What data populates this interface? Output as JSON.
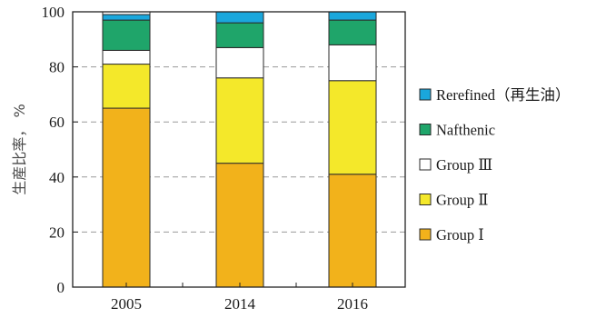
{
  "chart_data": {
    "type": "bar",
    "stacked": true,
    "categories": [
      "2005",
      "2014",
      "2016"
    ],
    "ylabel": "生産比率， %",
    "ylim": [
      0,
      100
    ],
    "yticks": [
      "0",
      "20",
      "40",
      "60",
      "80",
      "100"
    ],
    "grid": "dashed horizontal",
    "legend_position": "right",
    "series": [
      {
        "name": "Group Ⅰ",
        "color": "#f2b21b",
        "values": [
          65,
          45,
          41
        ]
      },
      {
        "name": "Group Ⅱ",
        "color": "#f4e82a",
        "values": [
          16,
          31,
          34
        ]
      },
      {
        "name": "Group Ⅲ",
        "color": "#ffffff",
        "values": [
          5,
          11,
          13
        ]
      },
      {
        "name": "Nafthenic",
        "color": "#1fa56a",
        "values": [
          11,
          9,
          9
        ]
      },
      {
        "name": "Rerefined（再生油）",
        "color": "#1aa7dc",
        "values": [
          2,
          4,
          3
        ]
      }
    ]
  }
}
